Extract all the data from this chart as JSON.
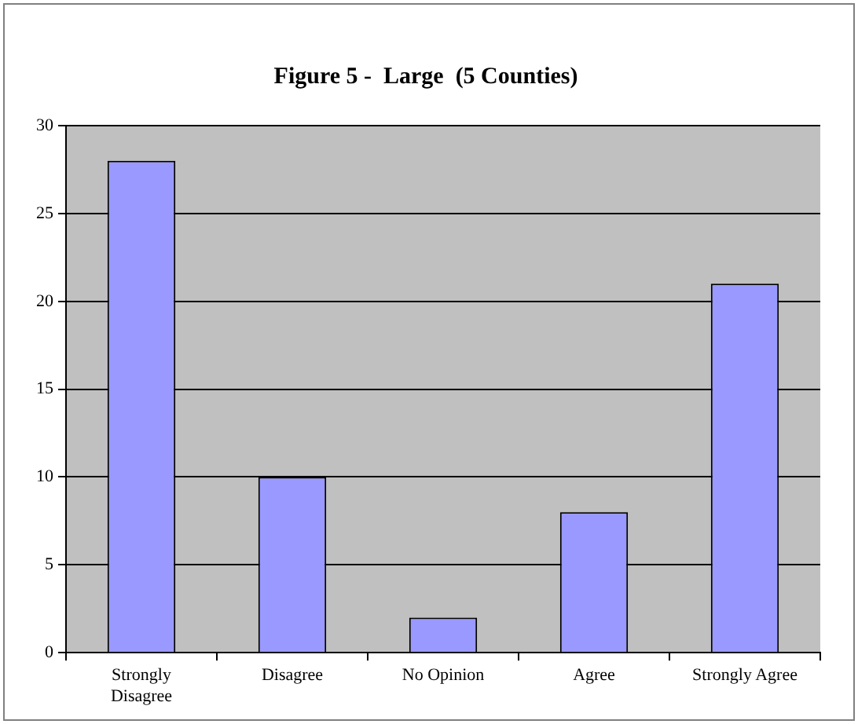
{
  "chart_data": {
    "type": "bar",
    "title": "Figure 5 -  Large  (5 Counties)",
    "categories": [
      "Strongly Disagree",
      "Disagree",
      "No Opinion",
      "Agree",
      "Strongly Agree"
    ],
    "values": [
      28,
      10,
      2,
      8,
      21
    ],
    "color": "#9999ff",
    "ylim": [
      0,
      30
    ],
    "yticks": [
      0,
      5,
      10,
      15,
      20,
      25,
      30
    ],
    "grid": "y",
    "legend": false
  }
}
